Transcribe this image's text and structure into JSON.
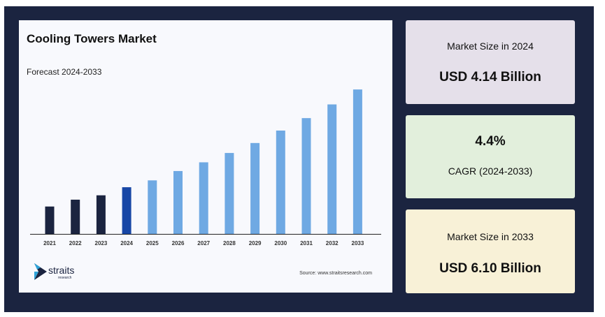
{
  "chart_data": {
    "type": "bar",
    "title": "Cooling Towers Market",
    "subtitle": "Forecast 2024-2033",
    "categories": [
      "2021",
      "2022",
      "2023",
      "2024",
      "2025",
      "2026",
      "2027",
      "2028",
      "2029",
      "2030",
      "2031",
      "2032",
      "2033"
    ],
    "values": [
      2.2,
      2.75,
      3.1,
      3.75,
      4.3,
      5.05,
      5.75,
      6.5,
      7.3,
      8.3,
      9.3,
      10.4,
      11.6
    ],
    "ylim": [
      0,
      12
    ],
    "value_scale": "relative bar height (no y-axis printed)",
    "grid": false,
    "colors": {
      "historical": "#1b2440",
      "base_year": "#1847a6",
      "forecast": "#6fa9e3"
    },
    "base_year_index": 3,
    "historical_indices": [
      0,
      1,
      2
    ]
  },
  "branding": {
    "logo_name": "straits",
    "logo_sub": "research",
    "logo_icon": "straits-chevron-icon",
    "source": "Source: www.straitsresearch.com"
  },
  "stats": {
    "size_2024_label": "Market Size in 2024",
    "size_2024_value": "USD 4.14 Billion",
    "cagr_value": "4.4%",
    "cagr_label": "CAGR (2024-2033)",
    "size_2033_label": "Market Size in 2033",
    "size_2033_value": "USD 6.10 Billion"
  },
  "colors": {
    "frame": "#1b2440",
    "card_2024": "#e5e0ea",
    "card_cagr": "#e2efdc",
    "card_2033": "#f8f1d7"
  }
}
